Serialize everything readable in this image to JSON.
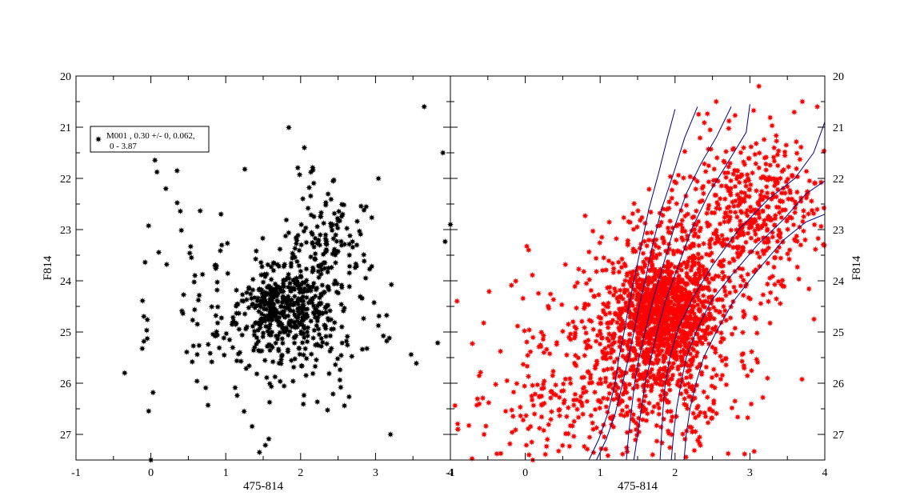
{
  "chart_data": [
    {
      "type": "scatter",
      "panel": "left",
      "xlabel": "475-814",
      "ylabel": "F814",
      "xlim": [
        -1,
        4
      ],
      "ylim": [
        27.5,
        20
      ],
      "y_inverted": true,
      "x_ticks": [
        "-1",
        "0",
        "1",
        "2",
        "3",
        "4"
      ],
      "y_ticks": [
        "20",
        "21",
        "22",
        "23",
        "24",
        "25",
        "26",
        "27"
      ],
      "legend": {
        "label_line1": "M001   , 0.30 +/- 0, 0.062,",
        "label_line2": "0 - 3.87",
        "placement": "top-left"
      },
      "series": [
        {
          "name": "M001",
          "color": "#000000",
          "marker": "star",
          "points_generated": {
            "seed": 11,
            "clusters": [
              {
                "n": 320,
                "cx": 1.8,
                "sx": 0.28,
                "cy": 24.5,
                "sy": 0.38
              },
              {
                "n": 170,
                "cx": 1.75,
                "sx": 0.55,
                "cy": 25.0,
                "sy": 0.7
              },
              {
                "n": 140,
                "cx": 2.35,
                "sx": 0.3,
                "cy": 23.3,
                "sy": 0.65
              },
              {
                "n": 120,
                "cx": 1.3,
                "sx": 1.0,
                "cy": 24.6,
                "sy": 1.15
              }
            ],
            "xclip": [
              -0.35,
              3.95
            ],
            "yclip": [
              20.5,
              27.5
            ]
          },
          "points": [
            [
              3.65,
              20.6
            ],
            [
              -0.35,
              25.8
            ],
            [
              3.2,
              27.0
            ],
            [
              0.35,
              21.85
            ],
            [
              2.05,
              21.4
            ],
            [
              3.9,
              21.5
            ],
            [
              4.0,
              22.9
            ],
            [
              0.0,
              27.5
            ],
            [
              1.45,
              27.35
            ],
            [
              0.2,
              22.2
            ]
          ]
        }
      ]
    },
    {
      "type": "scatter",
      "panel": "right",
      "xlabel": "475-814",
      "ylabel": "F814",
      "xlim": [
        -1,
        4
      ],
      "ylim": [
        27.5,
        20
      ],
      "y_inverted": true,
      "x_ticks": [
        "-1",
        "0",
        "1",
        "2",
        "3",
        "4"
      ],
      "y_ticks": [
        "20",
        "21",
        "22",
        "23",
        "24",
        "25",
        "26",
        "27"
      ],
      "series": [
        {
          "name": "",
          "color": "#ff0000",
          "marker": "star",
          "points_generated": {
            "seed": 29,
            "clusters": [
              {
                "n": 900,
                "cx": 1.85,
                "sx": 0.3,
                "cy": 24.6,
                "sy": 0.55
              },
              {
                "n": 500,
                "cx": 1.75,
                "sx": 0.55,
                "cy": 25.3,
                "sy": 0.9
              },
              {
                "n": 350,
                "cx": 2.6,
                "sx": 0.55,
                "cy": 23.2,
                "sy": 0.8
              },
              {
                "n": 260,
                "cx": 3.2,
                "sx": 0.5,
                "cy": 22.3,
                "sy": 0.7
              },
              {
                "n": 260,
                "cx": 1.4,
                "sx": 0.9,
                "cy": 25.3,
                "sy": 1.0
              },
              {
                "n": 150,
                "cx": 0.7,
                "sx": 0.8,
                "cy": 26.6,
                "sy": 0.5
              }
            ],
            "xclip": [
              -0.95,
              4.0
            ],
            "yclip": [
              20.4,
              27.5
            ]
          },
          "points": [
            [
              3.12,
              20.2
            ],
            [
              -0.9,
              26.9
            ],
            [
              -0.55,
              27.0
            ],
            [
              0.05,
              27.4
            ],
            [
              0.1,
              27.5
            ],
            [
              2.55,
              20.5
            ],
            [
              3.7,
              20.5
            ],
            [
              3.9,
              20.6
            ]
          ]
        }
      ],
      "isochrones": {
        "color": "#00008b",
        "curves": [
          {
            "name": "iso-1",
            "points": [
              [
                0.85,
                27.5
              ],
              [
                0.98,
                27.1
              ],
              [
                1.1,
                26.6
              ],
              [
                1.2,
                26.0
              ],
              [
                1.25,
                25.5
              ],
              [
                1.32,
                25.0
              ],
              [
                1.38,
                24.5
              ],
              [
                1.45,
                24.0
              ],
              [
                1.55,
                23.3
              ],
              [
                1.65,
                22.6
              ],
              [
                1.78,
                21.9
              ],
              [
                1.9,
                21.2
              ],
              [
                2.0,
                20.65
              ]
            ]
          },
          {
            "name": "iso-2",
            "points": [
              [
                0.95,
                27.5
              ],
              [
                1.08,
                27.1
              ],
              [
                1.2,
                26.6
              ],
              [
                1.3,
                26.0
              ],
              [
                1.38,
                25.5
              ],
              [
                1.45,
                25.0
              ],
              [
                1.52,
                24.5
              ],
              [
                1.6,
                24.0
              ],
              [
                1.7,
                23.3
              ],
              [
                1.82,
                22.6
              ],
              [
                1.98,
                21.9
              ],
              [
                2.13,
                21.2
              ],
              [
                2.3,
                20.6
              ]
            ]
          },
          {
            "name": "iso-3",
            "points": [
              [
                1.35,
                27.5
              ],
              [
                1.38,
                27.0
              ],
              [
                1.42,
                26.5
              ],
              [
                1.46,
                26.0
              ],
              [
                1.52,
                25.5
              ],
              [
                1.6,
                25.0
              ],
              [
                1.7,
                24.4
              ],
              [
                1.82,
                23.8
              ],
              [
                1.98,
                23.0
              ],
              [
                2.15,
                22.3
              ],
              [
                2.35,
                21.7
              ],
              [
                2.55,
                21.2
              ],
              [
                2.75,
                20.6
              ]
            ]
          },
          {
            "name": "iso-4",
            "points": [
              [
                1.45,
                27.5
              ],
              [
                1.5,
                27.0
              ],
              [
                1.55,
                26.5
              ],
              [
                1.6,
                26.0
              ],
              [
                1.68,
                25.5
              ],
              [
                1.76,
                25.0
              ],
              [
                1.87,
                24.4
              ],
              [
                2.02,
                23.8
              ],
              [
                2.22,
                23.0
              ],
              [
                2.45,
                22.3
              ],
              [
                2.7,
                21.7
              ],
              [
                2.95,
                21.1
              ],
              [
                3.0,
                20.55
              ]
            ]
          },
          {
            "name": "iso-5",
            "points": [
              [
                1.8,
                27.5
              ],
              [
                1.82,
                27.0
              ],
              [
                1.84,
                26.5
              ],
              [
                1.87,
                26.0
              ],
              [
                1.93,
                25.5
              ],
              [
                2.05,
                24.9
              ],
              [
                2.25,
                24.3
              ],
              [
                2.5,
                23.7
              ],
              [
                2.85,
                23.0
              ],
              [
                3.25,
                22.4
              ],
              [
                3.6,
                22.0
              ],
              [
                3.85,
                21.5
              ],
              [
                4.0,
                20.9
              ]
            ]
          },
          {
            "name": "iso-6",
            "points": [
              [
                1.95,
                27.5
              ],
              [
                1.98,
                27.0
              ],
              [
                2.02,
                26.5
              ],
              [
                2.08,
                26.0
              ],
              [
                2.15,
                25.5
              ],
              [
                2.28,
                25.0
              ],
              [
                2.48,
                24.4
              ],
              [
                2.75,
                23.9
              ],
              [
                3.1,
                23.3
              ],
              [
                3.45,
                22.8
              ],
              [
                3.75,
                22.3
              ],
              [
                4.0,
                22.05
              ]
            ]
          },
          {
            "name": "iso-7",
            "points": [
              [
                2.12,
                27.5
              ],
              [
                2.15,
                27.0
              ],
              [
                2.2,
                26.5
              ],
              [
                2.28,
                26.0
              ],
              [
                2.38,
                25.5
              ],
              [
                2.55,
                25.0
              ],
              [
                2.78,
                24.4
              ],
              [
                3.1,
                23.8
              ],
              [
                3.45,
                23.2
              ],
              [
                3.75,
                22.85
              ],
              [
                4.0,
                22.7
              ]
            ]
          }
        ]
      }
    }
  ]
}
